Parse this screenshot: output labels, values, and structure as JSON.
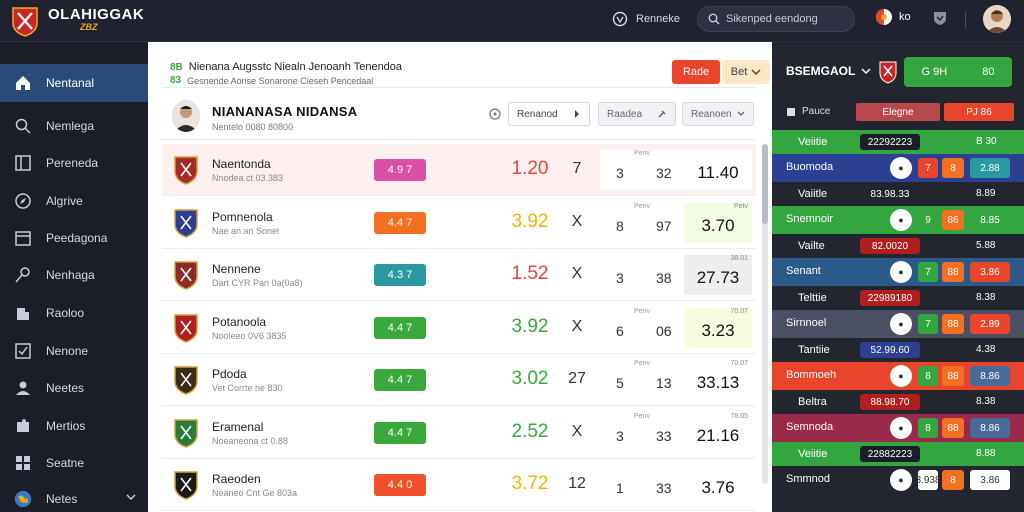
{
  "header": {
    "logo_text": "OLAHIGGAK",
    "logo_sub": "ZBZ",
    "nav_label": "Renneke",
    "search_placeholder": "Sikenped eendong",
    "lang_label": "ko"
  },
  "sidebar": {
    "items": [
      {
        "label": "Nentanal",
        "icon": "home-icon"
      },
      {
        "label": "Nemlega",
        "icon": "search-icon"
      },
      {
        "label": "Pereneda",
        "icon": "columns-icon"
      },
      {
        "label": "Algrive",
        "icon": "compass-icon"
      },
      {
        "label": "Peedagona",
        "icon": "calendar-icon"
      },
      {
        "label": "Nenhaga",
        "icon": "key-icon"
      },
      {
        "label": "Raoloo",
        "icon": "building-icon"
      },
      {
        "label": "Nenone",
        "icon": "checkbox-icon"
      },
      {
        "label": "Neetes",
        "icon": "users-icon"
      },
      {
        "label": "Mertios",
        "icon": "puzzle-icon"
      },
      {
        "label": "Seatne",
        "icon": "grid-icon"
      },
      {
        "label": "Netes",
        "icon": "globe-icon"
      }
    ]
  },
  "main": {
    "title_tag": "8B",
    "title": "Nienana Augsstc Niealn Jenoanh Tenendoa",
    "sub_tag": "83",
    "subtitle": "Gesnende Aonse Sonarone Cieseh Pencedaal",
    "btn_primary": "Rade",
    "btn_secondary": "Bet",
    "profile": {
      "name": "NIANANASA NIDANSA",
      "sub": "Nentelo 0080 80800"
    },
    "selects": [
      {
        "label": "Renanod"
      },
      {
        "label": "Raadea"
      },
      {
        "label": "Reanoen"
      }
    ],
    "rows": [
      {
        "name": "Naentonda",
        "sub": "Nnodea ct 03.383",
        "pill": "4.9 7",
        "pill_color": "#d94fa6",
        "odd": "1.20",
        "odd_color": "#e0463b",
        "x": "7",
        "n1": "3",
        "n2": "32",
        "box_label": "Penv",
        "res": "11.40",
        "res_label": "",
        "res_bg": "#ffffff",
        "crest": "#a52a2a"
      },
      {
        "name": "Pomnenola",
        "sub": "Nae an an Sonel",
        "pill": "4.4 7",
        "pill_color": "#f37021",
        "odd": "3.92",
        "odd_color": "#f0b400",
        "x": "X",
        "n1": "8",
        "n2": "97",
        "box_label": "Penv",
        "res": "3.70",
        "res_label": "Petv",
        "res_bg": "#f4fbe3",
        "crest": "#2c3f91"
      },
      {
        "name": "Nennene",
        "sub": "Dart CYR Pan 0a(0a8)",
        "pill": "4.3 7",
        "pill_color": "#2a9aa0",
        "odd": "1.52",
        "odd_color": "#e0463b",
        "x": "X",
        "n1": "3",
        "n2": "38",
        "box_label": "",
        "res": "27.73",
        "res_label": "38.01",
        "res_bg": "#eeeeee",
        "crest": "#8a2a2a"
      },
      {
        "name": "Potanoola",
        "sub": "Nooleeo 0V6 3835",
        "pill": "4.4 7",
        "pill_color": "#3aa83a",
        "odd": "3.92",
        "odd_color": "#3aa83a",
        "x": "X",
        "n1": "6",
        "n2": "06",
        "box_label": "Penv",
        "res": "3.23",
        "res_label": "70.07",
        "res_bg": "#f8fbe0",
        "crest": "#b01e1e"
      },
      {
        "name": "Pdoda",
        "sub": "Vet Corrte ne 830",
        "pill": "4.4 7",
        "pill_color": "#3aa83a",
        "odd": "3.02",
        "odd_color": "#3aa83a",
        "x": "27",
        "n1": "5",
        "n2": "13",
        "box_label": "Penv",
        "res": "33.13",
        "res_label": "70.07",
        "res_bg": "#ffffff",
        "crest": "#3a2a1a"
      },
      {
        "name": "Eramenal",
        "sub": "Noeaneona ct 0.88",
        "pill": "4.4 7",
        "pill_color": "#3aa83a",
        "odd": "2.52",
        "odd_color": "#3aa83a",
        "x": "X",
        "n1": "3",
        "n2": "33",
        "box_label": "Penv",
        "res": "21.16",
        "res_label": "78.05",
        "res_bg": "#ffffff",
        "crest": "#2a7a3a"
      },
      {
        "name": "Raeoden",
        "sub": "Neaneo Cnt Ge 803a",
        "pill": "4.4 0",
        "pill_color": "#f0502a",
        "odd": "3.72",
        "odd_color": "#f0b400",
        "x": "12",
        "n1": "1",
        "n2": "33",
        "box_label": "",
        "res": "3.76",
        "res_label": "",
        "res_bg": "#ffffff",
        "crest": "#1a1a1a"
      }
    ]
  },
  "right": {
    "title": "BSEMGAOL",
    "btn_left": "G 9H",
    "btn_right": "80",
    "sub_label": "Pauce",
    "sub_pill1": "Elegne",
    "sub_pill2": "PJ 86",
    "rows": [
      {
        "type": "bar",
        "bg": "#33a63f",
        "label": "Veiitie",
        "chip": "22292223",
        "chip_bg": "#1b1e29",
        "val": "B 30"
      },
      {
        "type": "team",
        "bg": "#2c3f91",
        "label": "Buomoda",
        "a": "7",
        "a_bg": "#e8452c",
        "b": "8",
        "b_bg": "#f37021",
        "c": "2.88",
        "c_bg": "#2a9aa0"
      },
      {
        "type": "bar",
        "bg": "#23262f",
        "label": "Vaiitle",
        "chip": "83.98.33",
        "chip_bg": "#23262f",
        "val": "8.89"
      },
      {
        "type": "team",
        "bg": "#33a63f",
        "label": "Snemnoir",
        "a": "9",
        "a_bg": "#33a63f",
        "b": "86",
        "b_bg": "#f37021",
        "c": "8.85",
        "c_bg": "#33a63f"
      },
      {
        "type": "bar",
        "bg": "#23262f",
        "label": "Vailte",
        "chip": "82.0020",
        "chip_bg": "#b01e1e",
        "val": "5.88"
      },
      {
        "type": "team",
        "bg": "#2a5a8a",
        "label": "Senant",
        "a": "7",
        "a_bg": "#33a63f",
        "b": "88",
        "b_bg": "#f37021",
        "c": "3.86",
        "c_bg": "#e8452c"
      },
      {
        "type": "bar",
        "bg": "#23262f",
        "label": "Telttie",
        "chip": "22989180",
        "chip_bg": "#b01e1e",
        "val": "8.38"
      },
      {
        "type": "team",
        "bg": "#4a4f63",
        "label": "Sirnnoel",
        "a": "7",
        "a_bg": "#33a63f",
        "b": "88",
        "b_bg": "#f37021",
        "c": "2.89",
        "c_bg": "#e8452c"
      },
      {
        "type": "bar",
        "bg": "#23262f",
        "label": "Tantiie",
        "chip": "52.99.60",
        "chip_bg": "#2c3f91",
        "val": "4.38"
      },
      {
        "type": "team",
        "bg": "#e8452c",
        "label": "Bommoeh",
        "a": "8",
        "a_bg": "#33a63f",
        "b": "88",
        "b_bg": "#f37021",
        "c": "8.86",
        "c_bg": "#4a6a9a"
      },
      {
        "type": "bar",
        "bg": "#23262f",
        "label": "Beltra",
        "chip": "88.98.70",
        "chip_bg": "#b01e1e",
        "val": "8.38"
      },
      {
        "type": "team",
        "bg": "#9a2a4a",
        "label": "Semnoda",
        "a": "8",
        "a_bg": "#33a63f",
        "b": "88",
        "b_bg": "#f37021",
        "c": "8.86",
        "c_bg": "#4a6a9a"
      },
      {
        "type": "bar",
        "bg": "#33a63f",
        "label": "Veiitie",
        "chip": "22882223",
        "chip_bg": "#1b1e29",
        "val": "8.88"
      },
      {
        "type": "team",
        "bg": "#23262f",
        "label": "Smmnod",
        "a": "3.938",
        "a_bg": "#ffffff",
        "b": "8",
        "b_bg": "#f37021",
        "c": "3.86",
        "c_bg": "#ffffff"
      }
    ]
  },
  "colors": {
    "accent": "#2a4a7a",
    "green": "#33a63f",
    "red": "#e8452c",
    "orange": "#f37021"
  }
}
